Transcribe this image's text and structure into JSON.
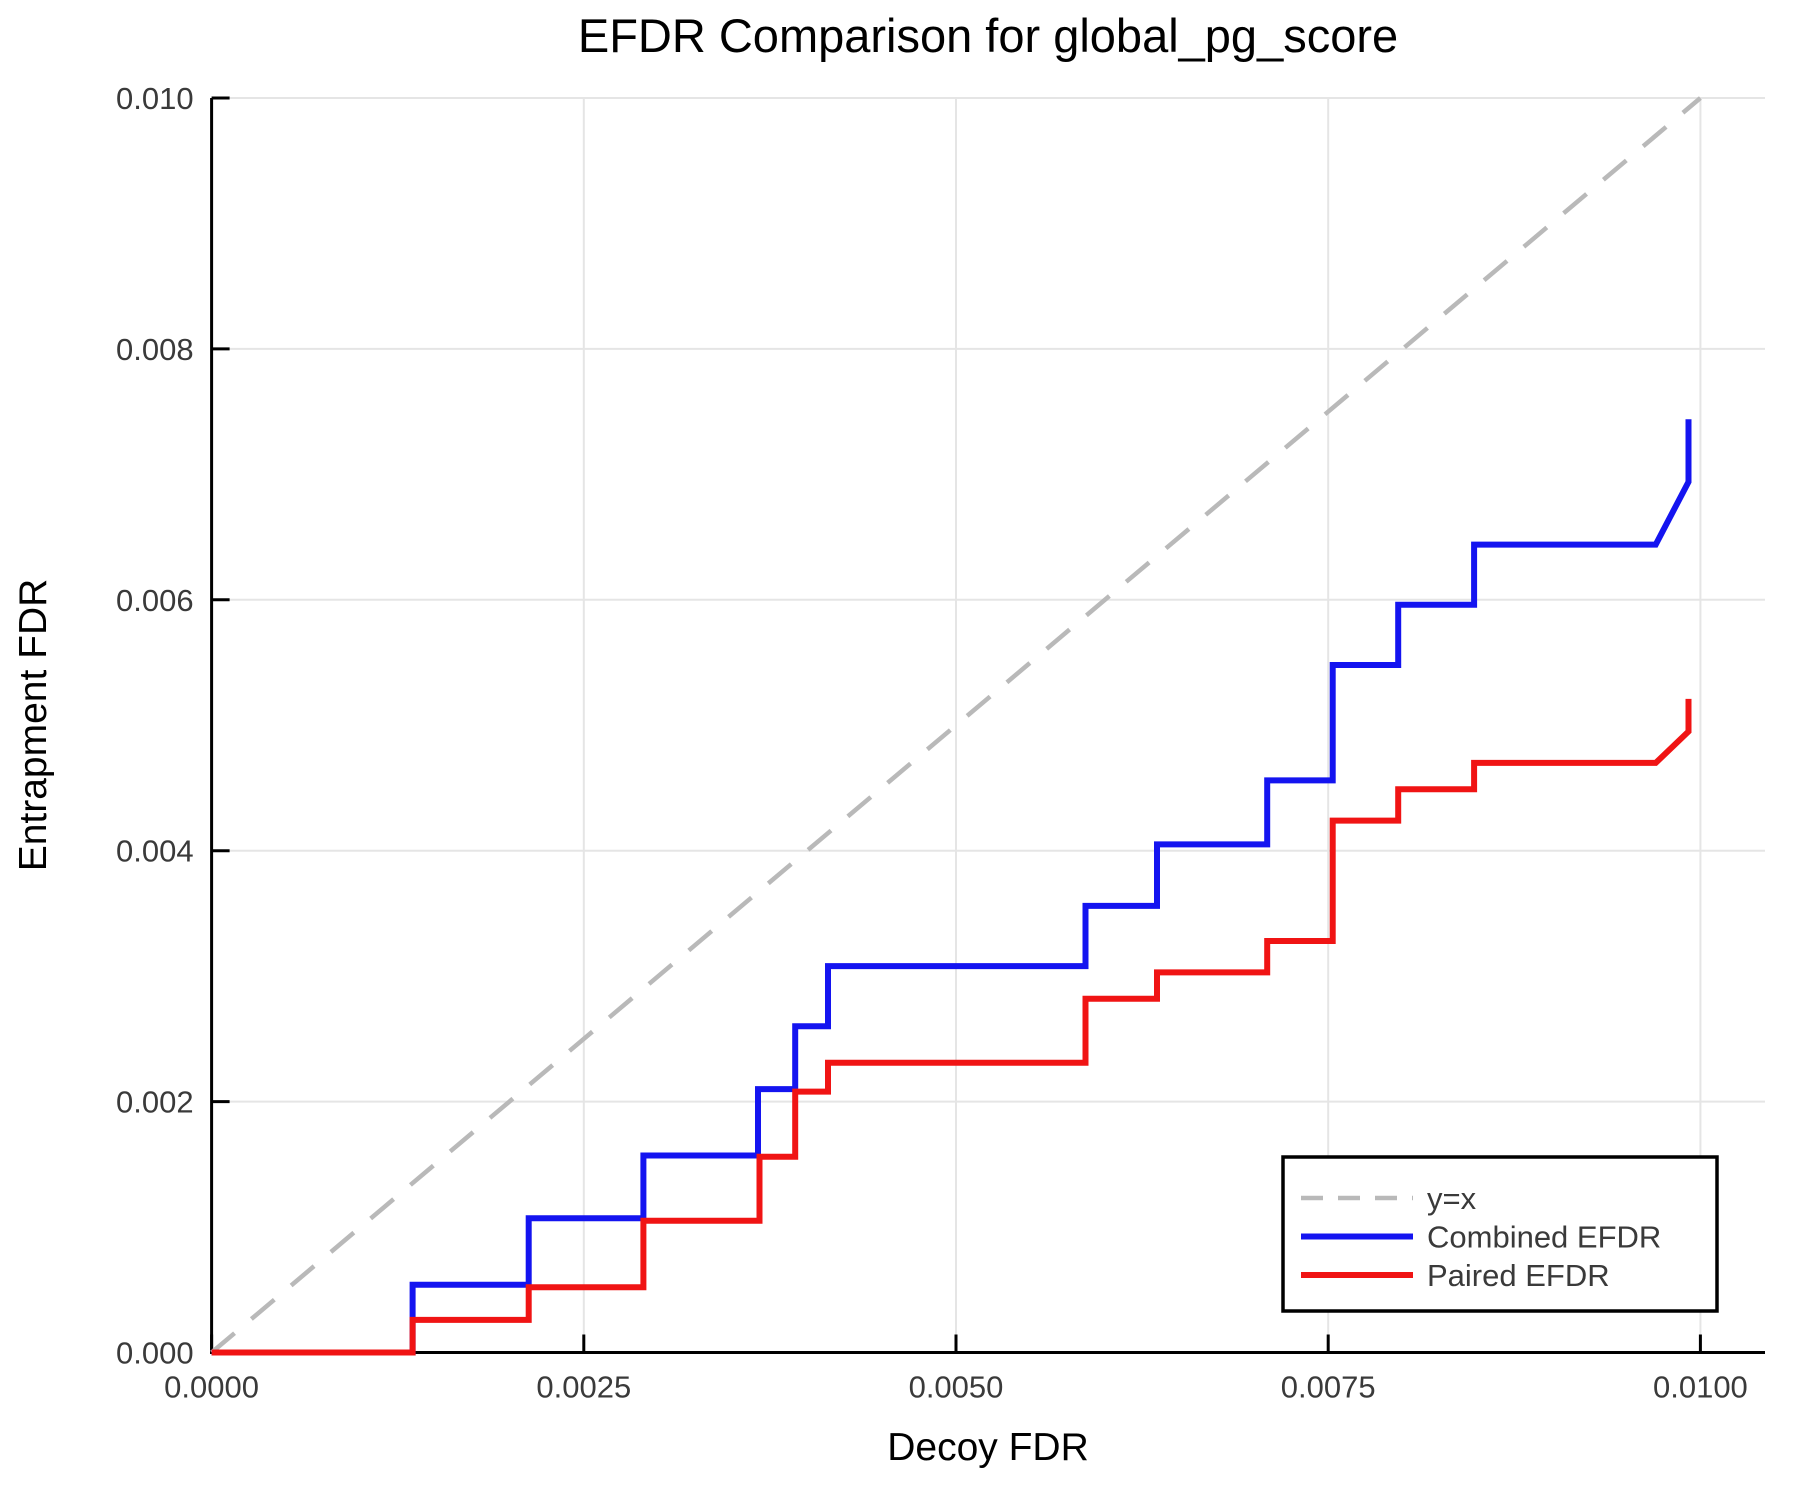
{
  "chart_data": {
    "type": "line",
    "title": "EFDR Comparison for global_pg_score",
    "xlabel": "Decoy FDR",
    "ylabel": "Entrapment FDR",
    "xlim": [
      0.0,
      0.01044
    ],
    "ylim": [
      0.0,
      0.01
    ],
    "grid": true,
    "legend_position": "lower right",
    "x_ticks": {
      "values": [
        0.0,
        0.0025,
        0.005,
        0.0075,
        0.01
      ],
      "labels": [
        "0.0000",
        "0.0025",
        "0.0050",
        "0.0075",
        "0.0100"
      ]
    },
    "y_ticks": {
      "values": [
        0.0,
        0.002,
        0.004,
        0.006,
        0.008,
        0.01
      ],
      "labels": [
        "0.000",
        "0.002",
        "0.004",
        "0.006",
        "0.008",
        "0.010"
      ]
    },
    "series": [
      {
        "name": "y=x",
        "style": "dashed",
        "color": "#b9b9b9",
        "points": [
          [
            0.0,
            0.0
          ],
          [
            0.01,
            0.01
          ]
        ]
      },
      {
        "name": "Combined EFDR",
        "style": "solid",
        "color": "#1414f0",
        "points": [
          [
            0.0,
            0.0
          ],
          [
            0.00135,
            0.0
          ],
          [
            0.00135,
            0.00054
          ],
          [
            0.00213,
            0.00054
          ],
          [
            0.00213,
            0.00107
          ],
          [
            0.0029,
            0.00107
          ],
          [
            0.0029,
            0.00157
          ],
          [
            0.00367,
            0.00157
          ],
          [
            0.00367,
            0.0021
          ],
          [
            0.00392,
            0.0021
          ],
          [
            0.00392,
            0.0026
          ],
          [
            0.00414,
            0.0026
          ],
          [
            0.00414,
            0.00308
          ],
          [
            0.00587,
            0.00308
          ],
          [
            0.00587,
            0.00356
          ],
          [
            0.00635,
            0.00356
          ],
          [
            0.00635,
            0.00405
          ],
          [
            0.00709,
            0.00405
          ],
          [
            0.00709,
            0.00456
          ],
          [
            0.00753,
            0.00456
          ],
          [
            0.00753,
            0.00548
          ],
          [
            0.00797,
            0.00548
          ],
          [
            0.00797,
            0.00596
          ],
          [
            0.00848,
            0.00596
          ],
          [
            0.00848,
            0.00644
          ],
          [
            0.0097,
            0.00644
          ],
          [
            0.00992,
            0.00694
          ],
          [
            0.00992,
            0.00744
          ]
        ]
      },
      {
        "name": "Paired EFDR",
        "style": "solid",
        "color": "#f01414",
        "points": [
          [
            0.0,
            0.0
          ],
          [
            0.00135,
            0.0
          ],
          [
            0.00135,
            0.00026
          ],
          [
            0.00213,
            0.00026
          ],
          [
            0.00213,
            0.00052
          ],
          [
            0.0029,
            0.00052
          ],
          [
            0.0029,
            0.00105
          ],
          [
            0.00368,
            0.00105
          ],
          [
            0.00368,
            0.00156
          ],
          [
            0.00392,
            0.00156
          ],
          [
            0.00392,
            0.00208
          ],
          [
            0.00414,
            0.00208
          ],
          [
            0.00414,
            0.00231
          ],
          [
            0.00587,
            0.00231
          ],
          [
            0.00587,
            0.00282
          ],
          [
            0.00635,
            0.00282
          ],
          [
            0.00635,
            0.00303
          ],
          [
            0.00709,
            0.00303
          ],
          [
            0.00709,
            0.00328
          ],
          [
            0.00753,
            0.00328
          ],
          [
            0.00753,
            0.00424
          ],
          [
            0.00797,
            0.00424
          ],
          [
            0.00797,
            0.00449
          ],
          [
            0.00848,
            0.00449
          ],
          [
            0.00848,
            0.0047
          ],
          [
            0.0097,
            0.0047
          ],
          [
            0.00992,
            0.00495
          ],
          [
            0.00992,
            0.00521
          ]
        ]
      }
    ],
    "legend_entries": [
      "y=x",
      "Combined EFDR",
      "Paired EFDR"
    ]
  },
  "colors": {
    "axis": "#000000",
    "grid": "#e5e5e5",
    "text": "#3a3a3a",
    "background": "#ffffff",
    "legend_border": "#000000"
  }
}
